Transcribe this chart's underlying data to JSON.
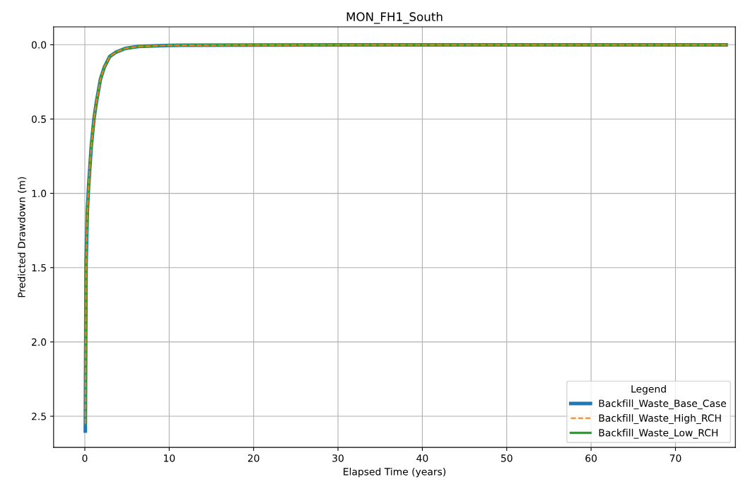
{
  "chart_data": {
    "type": "line",
    "title": "MON_FH1_South",
    "xlabel": "Elapsed Time (years)",
    "ylabel": "Predicted Drawdown (m)",
    "legend_title": "Legend",
    "legend": "bottom right",
    "grid": true,
    "xlim": [
      -3.7,
      77.1
    ],
    "xticks": [
      0,
      10,
      20,
      30,
      40,
      50,
      60,
      70
    ],
    "ylim": [
      2.71,
      -0.12
    ],
    "yticks": [
      {
        "value": 0,
        "label": "0.0"
      },
      0.5,
      {
        "value": 1,
        "label": "1.0"
      },
      1.5,
      {
        "value": 2,
        "label": "2.0"
      },
      2.5
    ],
    "x": [
      0.06,
      0.15,
      0.3,
      0.46,
      0.77,
      1.08,
      1.39,
      1.86,
      2.32,
      2.94,
      3.7,
      4.8,
      6.35,
      10,
      20,
      40,
      60,
      76
    ],
    "series": [
      {
        "name": "Backfill_Waste_Base_Case",
        "color": "#1f77b4",
        "line_style": "solid",
        "values": [
          2.6,
          1.47,
          1.12,
          0.94,
          0.68,
          0.5,
          0.38,
          0.23,
          0.15,
          0.08,
          0.05,
          0.025,
          0.012,
          0.004,
          0.002,
          0.001,
          0.001,
          0.001
        ]
      },
      {
        "name": "Backfill_Waste_High_RCH",
        "color": "#ff7f0e",
        "line_style": "dashed",
        "values": [
          2.55,
          1.47,
          1.12,
          0.94,
          0.68,
          0.5,
          0.38,
          0.23,
          0.15,
          0.08,
          0.05,
          0.025,
          0.012,
          0.004,
          0.002,
          0.001,
          0.001,
          0.001
        ]
      },
      {
        "name": "Backfill_Waste_Low_RCH",
        "color": "#2ca02c",
        "line_style": "solid",
        "values": [
          2.55,
          1.47,
          1.12,
          0.94,
          0.68,
          0.5,
          0.38,
          0.23,
          0.15,
          0.08,
          0.05,
          0.025,
          0.012,
          0.004,
          0.002,
          0.001,
          0.001,
          0.001
        ]
      }
    ]
  }
}
